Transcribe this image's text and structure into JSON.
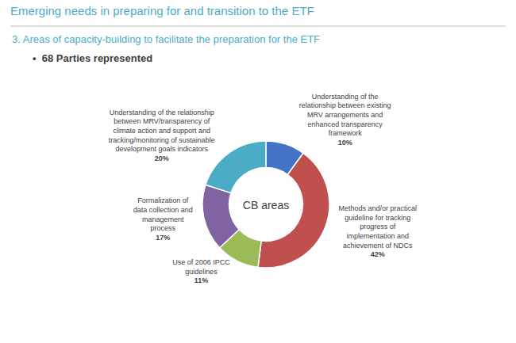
{
  "chart_data": {
    "type": "pie",
    "title": "Emerging needs in preparing for and transition to the ETF",
    "subtitle": "3. Areas of capacity-building to facilitate the preparation for the ETF",
    "annotations": [
      "•  68 Parties represented",
      "CB areas"
    ],
    "categories": [
      "Understanding of the\nrelationship between existing\nMRV arrangements and\nenhanced transparency\nframework",
      "Methods and/or practical\nguideline for tracking\nprogress of\nimplementation and\nachievement of NDCs",
      "Use of 2006 IPCC\nguidelines",
      "Formalization of\ndata collection and\nmanagement\nprocess",
      "Understanding of the relationship\nbetween MRV/transparency of\nclimate action and support and\ntracking/monitoring of sustainable\ndevelopment goals indicators"
    ],
    "values": [
      10,
      42,
      11,
      17,
      20
    ],
    "value_labels": [
      "10%",
      "42%",
      "11%",
      "17%",
      "20%"
    ],
    "colors": [
      "#4472C4",
      "#C0504D",
      "#9BBB59",
      "#8064A2",
      "#4BACC6"
    ],
    "data_labels": true
  }
}
